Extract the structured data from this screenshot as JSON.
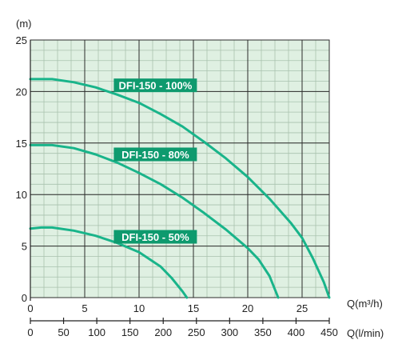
{
  "chart_data": {
    "type": "line",
    "title": "",
    "y_unit": "(m)",
    "x_unit": "Q(m³/h)",
    "x2_unit": "Q(l/min)",
    "xlim": [
      0,
      27.5
    ],
    "ylim": [
      0,
      25
    ],
    "x_ticks": [
      "0",
      "5",
      "10",
      "15",
      "20",
      "25"
    ],
    "y_ticks": [
      "0",
      "5",
      "10",
      "15",
      "20",
      "25"
    ],
    "x2_ticks": [
      "0",
      "50",
      "100",
      "150",
      "200",
      "250",
      "300",
      "350",
      "400",
      "450"
    ],
    "grid": true,
    "colors": {
      "plot_bg": "#dff0e2",
      "minor_grid": "#a9c2ae",
      "major_grid": "#2b2b2b",
      "curve": "#19b48a",
      "label_bg": "#0e9a6e"
    },
    "series": [
      {
        "name": "DFI-150 - 100%",
        "points": [
          [
            0,
            21.2
          ],
          [
            2,
            21.2
          ],
          [
            4,
            20.9
          ],
          [
            6,
            20.4
          ],
          [
            8,
            19.7
          ],
          [
            10,
            18.9
          ],
          [
            12,
            17.8
          ],
          [
            14,
            16.6
          ],
          [
            16,
            15.1
          ],
          [
            18,
            13.5
          ],
          [
            20,
            11.7
          ],
          [
            22,
            9.6
          ],
          [
            24,
            7.2
          ],
          [
            25,
            5.8
          ],
          [
            26,
            3.8
          ],
          [
            27,
            1.5
          ],
          [
            27.5,
            0
          ]
        ]
      },
      {
        "name": "DFI-150 - 80%",
        "points": [
          [
            0,
            14.8
          ],
          [
            2,
            14.8
          ],
          [
            4,
            14.5
          ],
          [
            6,
            13.9
          ],
          [
            8,
            13.1
          ],
          [
            10,
            12.1
          ],
          [
            12,
            11.0
          ],
          [
            14,
            9.7
          ],
          [
            16,
            8.2
          ],
          [
            18,
            6.6
          ],
          [
            20,
            4.8
          ],
          [
            21,
            3.7
          ],
          [
            22,
            2.1
          ],
          [
            22.8,
            0
          ]
        ]
      },
      {
        "name": "DFI-150 - 50%",
        "points": [
          [
            0,
            6.7
          ],
          [
            1,
            6.8
          ],
          [
            2,
            6.8
          ],
          [
            4,
            6.5
          ],
          [
            6,
            6.0
          ],
          [
            8,
            5.3
          ],
          [
            10,
            4.4
          ],
          [
            12,
            3.0
          ],
          [
            13,
            1.9
          ],
          [
            14,
            0.6
          ],
          [
            14.4,
            0
          ]
        ]
      }
    ]
  }
}
